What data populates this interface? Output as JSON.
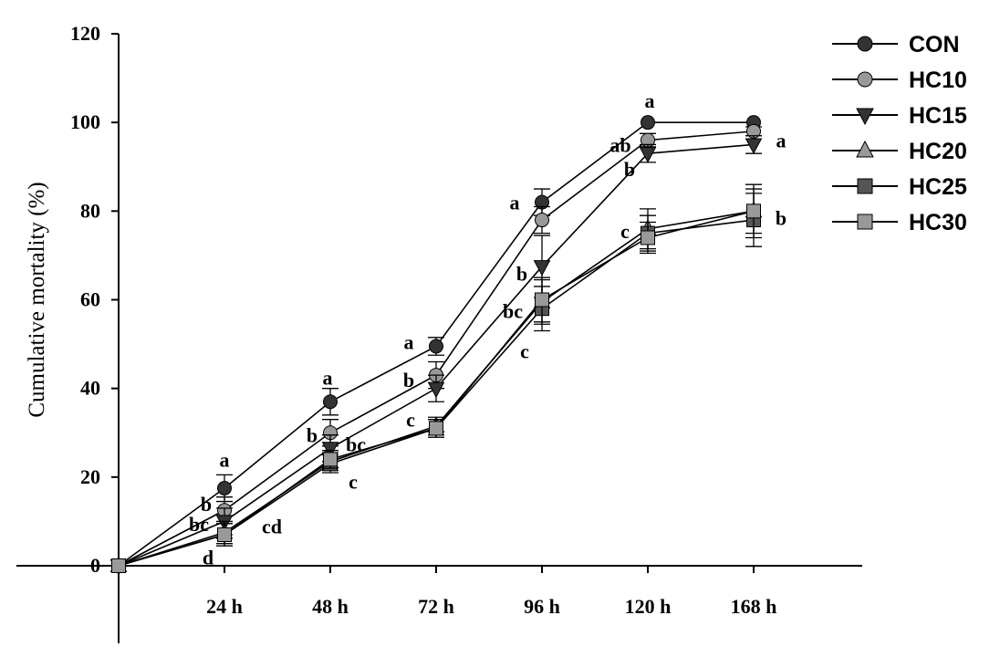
{
  "chart_data": {
    "type": "line",
    "title": "",
    "xlabel": "",
    "ylabel": "Cumulative mortality  (%)",
    "ylim": [
      0,
      120
    ],
    "yticks": [
      "0",
      "20",
      "40",
      "60",
      "80",
      "100",
      "120"
    ],
    "categories": [
      "",
      "24 h",
      "48 h",
      "72 h",
      "96 h",
      "120 h",
      "168 h"
    ],
    "grid": false,
    "legend_position": "top-right",
    "series": [
      {
        "name": "CON",
        "marker": "circle",
        "color": "#333333",
        "values": [
          0,
          17.5,
          37,
          49.5,
          82,
          100,
          100
        ],
        "errors": [
          0,
          3,
          3,
          2,
          3,
          0,
          0
        ]
      },
      {
        "name": "HC10",
        "marker": "circle",
        "color": "#999999",
        "values": [
          0,
          12.5,
          30,
          43,
          78,
          96,
          98
        ],
        "errors": [
          0,
          3,
          3,
          3,
          3,
          1.5,
          1
        ]
      },
      {
        "name": "HC15",
        "marker": "triangle-down",
        "color": "#333333",
        "values": [
          0,
          10,
          26.5,
          40,
          67.5,
          93,
          95
        ],
        "errors": [
          0,
          3,
          3,
          3,
          7,
          2,
          2
        ]
      },
      {
        "name": "HC20",
        "marker": "triangle-up",
        "color": "#999999",
        "values": [
          0,
          7.5,
          23.5,
          31.5,
          59.5,
          76,
          80
        ],
        "errors": [
          0,
          2.5,
          2,
          2,
          5,
          4.5,
          5
        ]
      },
      {
        "name": "HC25",
        "marker": "square",
        "color": "#555555",
        "values": [
          0,
          7,
          23,
          31,
          58,
          75,
          78
        ],
        "errors": [
          0,
          2.5,
          2,
          2,
          5,
          4,
          6
        ]
      },
      {
        "name": "HC30",
        "marker": "square",
        "color": "#999999",
        "values": [
          0,
          7,
          24,
          31,
          60,
          74,
          80
        ],
        "errors": [
          0,
          2.5,
          2,
          2,
          5,
          3.5,
          6
        ]
      }
    ],
    "annotations": [
      {
        "text": "a",
        "cat": 1,
        "y": 24
      },
      {
        "text": "b",
        "cat": 1,
        "y": 14
      },
      {
        "text": "bc",
        "cat": 1,
        "y": 9.5
      },
      {
        "text": "cd",
        "cat": 1,
        "y": 9
      },
      {
        "text": "d",
        "cat": 1,
        "y": 2
      },
      {
        "text": "a",
        "cat": 2,
        "y": 42.5
      },
      {
        "text": "b",
        "cat": 2,
        "y": 29.5
      },
      {
        "text": "bc",
        "cat": 2,
        "y": 27.5
      },
      {
        "text": "c",
        "cat": 2,
        "y": 19
      },
      {
        "text": "a",
        "cat": 3,
        "y": 50.5
      },
      {
        "text": "b",
        "cat": 3,
        "y": 42
      },
      {
        "text": "c",
        "cat": 3,
        "y": 33
      },
      {
        "text": "a",
        "cat": 4,
        "y": 82
      },
      {
        "text": "b",
        "cat": 4,
        "y": 66
      },
      {
        "text": "bc",
        "cat": 4,
        "y": 57.5
      },
      {
        "text": "c",
        "cat": 4,
        "y": 48.5
      },
      {
        "text": "a",
        "cat": 5,
        "y": 105
      },
      {
        "text": "ab",
        "cat": 5,
        "y": 95
      },
      {
        "text": "b",
        "cat": 5,
        "y": 89.5
      },
      {
        "text": "c",
        "cat": 5,
        "y": 75.5
      },
      {
        "text": "a",
        "cat": 6,
        "y": 96
      },
      {
        "text": "b",
        "cat": 6,
        "y": 78.5
      }
    ]
  }
}
